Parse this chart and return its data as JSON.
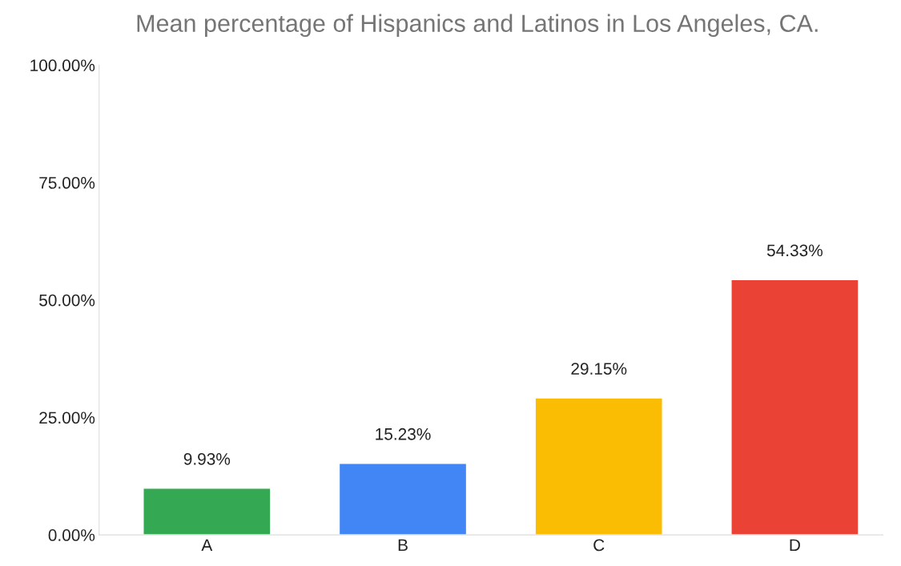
{
  "chart_data": {
    "type": "bar",
    "title": "Mean percentage of Hispanics and Latinos in Los Angeles, CA.",
    "categories": [
      "A",
      "B",
      "C",
      "D"
    ],
    "values": [
      9.93,
      15.23,
      29.15,
      54.33
    ],
    "colors": [
      "#34a853",
      "#4285f4",
      "#fbbc04",
      "#ea4335"
    ],
    "value_labels": [
      "9.93%",
      "15.23%",
      "29.15%",
      "54.33%"
    ],
    "ylim": [
      0,
      100
    ],
    "yticks": [
      {
        "value": 0,
        "label": "0.00%"
      },
      {
        "value": 25,
        "label": "25.00%"
      },
      {
        "value": 50,
        "label": "50.00%"
      },
      {
        "value": 75,
        "label": "75.00%"
      },
      {
        "value": 100,
        "label": "100.00%"
      }
    ],
    "grid": false
  }
}
